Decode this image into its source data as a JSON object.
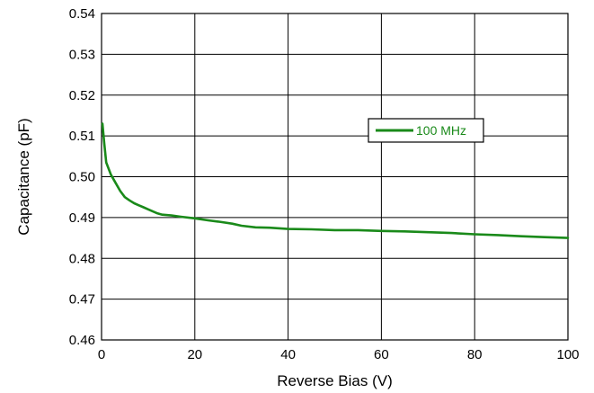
{
  "chart_data": {
    "type": "line",
    "title": "",
    "xlabel": "Reverse Bias (V)",
    "ylabel": "Capacitance (pF)",
    "xlim": [
      0,
      100
    ],
    "ylim": [
      0.46,
      0.54
    ],
    "x_ticks": [
      "0",
      "20",
      "40",
      "60",
      "80",
      "100"
    ],
    "y_ticks": [
      "0.46",
      "0.47",
      "0.48",
      "0.49",
      "0.50",
      "0.51",
      "0.52",
      "0.53",
      "0.54"
    ],
    "grid": true,
    "legend_position": "upper-right",
    "series": [
      {
        "name": "100 MHz",
        "color": "#1a8a1a",
        "points": [
          [
            0.2,
            0.513
          ],
          [
            0.6,
            0.508
          ],
          [
            1,
            0.5035
          ],
          [
            2,
            0.5005
          ],
          [
            3,
            0.4985
          ],
          [
            4,
            0.4965
          ],
          [
            5,
            0.495
          ],
          [
            6,
            0.4942
          ],
          [
            7,
            0.4935
          ],
          [
            8,
            0.493
          ],
          [
            9,
            0.4925
          ],
          [
            10,
            0.492
          ],
          [
            11,
            0.4915
          ],
          [
            12,
            0.491
          ],
          [
            13,
            0.4907
          ],
          [
            15,
            0.4905
          ],
          [
            17,
            0.4902
          ],
          [
            20,
            0.4898
          ],
          [
            23,
            0.4893
          ],
          [
            25,
            0.489
          ],
          [
            28,
            0.4885
          ],
          [
            30,
            0.488
          ],
          [
            33,
            0.4876
          ],
          [
            36,
            0.4875
          ],
          [
            40,
            0.4872
          ],
          [
            45,
            0.4871
          ],
          [
            50,
            0.4869
          ],
          [
            55,
            0.4869
          ],
          [
            60,
            0.4867
          ],
          [
            65,
            0.4866
          ],
          [
            70,
            0.4864
          ],
          [
            75,
            0.4862
          ],
          [
            80,
            0.4859
          ],
          [
            85,
            0.4857
          ],
          [
            90,
            0.4854
          ],
          [
            95,
            0.4852
          ],
          [
            100,
            0.485
          ]
        ]
      }
    ]
  }
}
